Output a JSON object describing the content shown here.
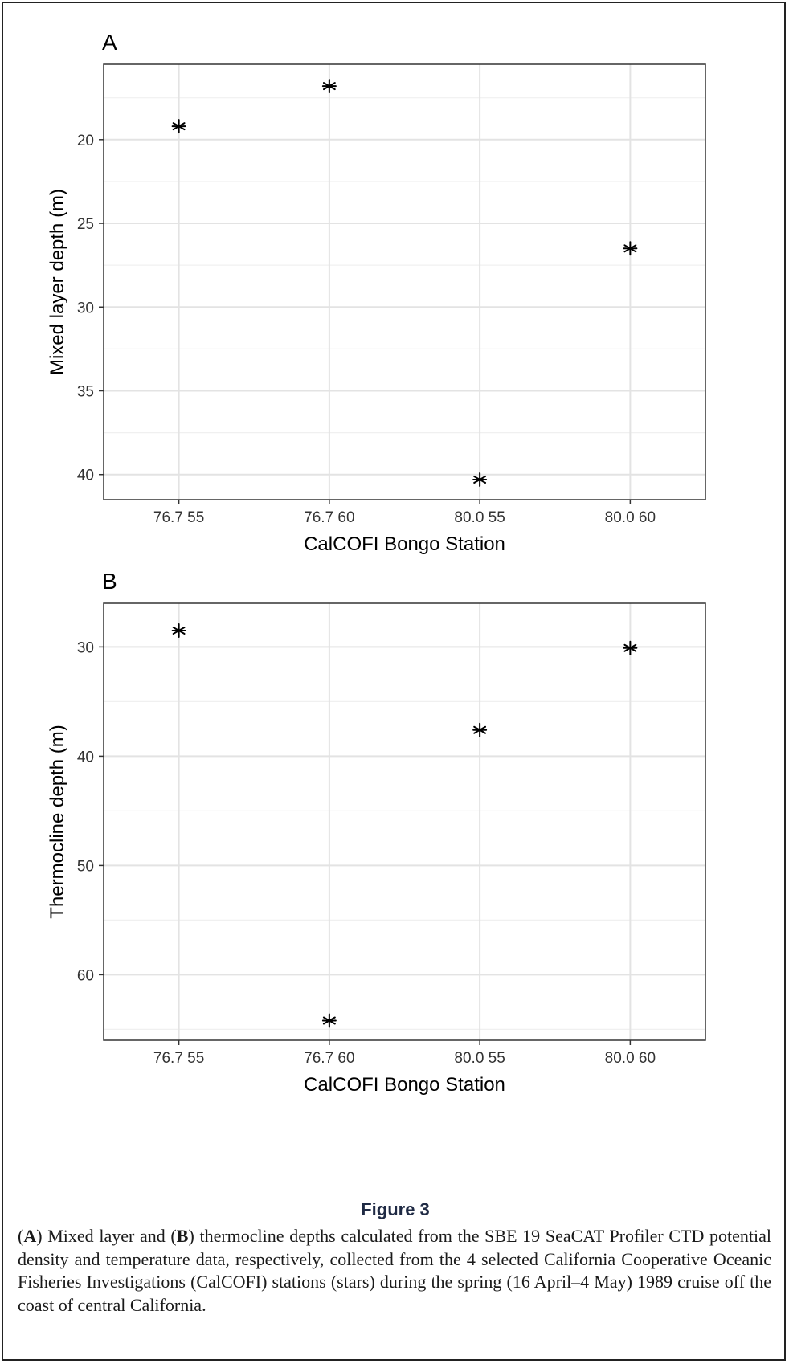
{
  "chart_data": [
    {
      "type": "scatter",
      "panel": "A",
      "categories": [
        "76.7 55",
        "76.7 60",
        "80.0 55",
        "80.0 60"
      ],
      "values": [
        19.2,
        16.8,
        40.3,
        26.5
      ],
      "xlabel": "CalCOFI Bongo Station",
      "ylabel": "Mixed layer depth (m)",
      "ylim": [
        15.5,
        41.5
      ],
      "y_reversed": true,
      "yticks": [
        20,
        25,
        30,
        35,
        40
      ],
      "marker": "asterisk",
      "grid": true
    },
    {
      "type": "scatter",
      "panel": "B",
      "categories": [
        "76.7 55",
        "76.7 60",
        "80.0 55",
        "80.0 60"
      ],
      "values": [
        28.5,
        64.2,
        37.6,
        30.1
      ],
      "xlabel": "CalCOFI Bongo Station",
      "ylabel": "Thermocline depth (m)",
      "ylim": [
        26.0,
        66.0
      ],
      "y_reversed": true,
      "yticks": [
        30,
        40,
        50,
        60
      ],
      "marker": "asterisk",
      "grid": true
    }
  ],
  "figure": {
    "title": "Figure 3",
    "caption_parts": [
      {
        "text": "(",
        "bold": false
      },
      {
        "text": "A",
        "bold": true
      },
      {
        "text": ") Mixed layer and (",
        "bold": false
      },
      {
        "text": "B",
        "bold": true
      },
      {
        "text": ") thermocline depths calculated from the SBE 19 SeaCAT Profiler CTD potential density and temperature data, respectively, collected from the 4 selected California Cooperative Oceanic Fisheries Investigations (CalCOFI) stations (stars) during the spring (16 April–4 May) 1989 cruise off the coast of central California.",
        "bold": false
      }
    ]
  },
  "colors": {
    "grid_major": "#e3e3e3",
    "grid_minor": "#f0f0f0",
    "panel_border": "#333333",
    "marker": "#000000",
    "title": "#1f2a44"
  }
}
